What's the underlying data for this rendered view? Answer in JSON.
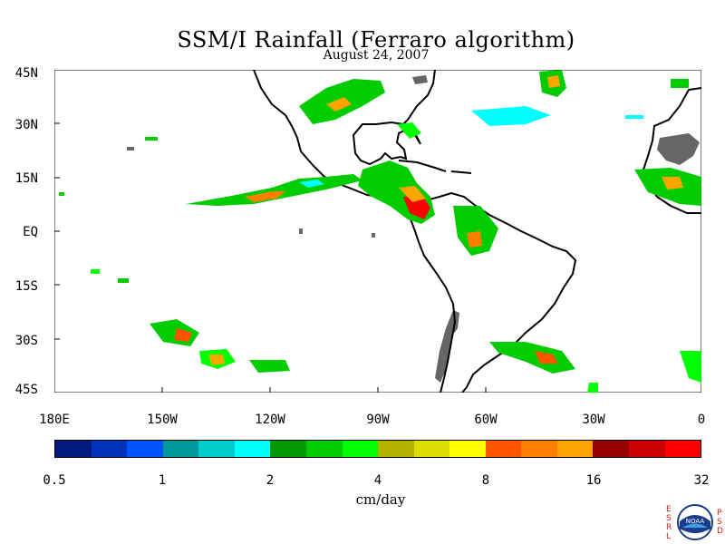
{
  "title": "SSM/I Rainfall (Ferraro algorithm)",
  "date": "August 24, 2007",
  "lat_labels": [
    "45N",
    "30N",
    "15N",
    "EQ",
    "15S",
    "30S",
    "45S"
  ],
  "lon_labels": [
    "180E",
    "150W",
    "120W",
    "90W",
    "60W",
    "30W",
    "0"
  ],
  "colorbar": {
    "tick_labels": [
      "0.5",
      "1",
      "2",
      "4",
      "8",
      "16",
      "32"
    ],
    "units": "cm/day",
    "colors": [
      "#001a80",
      "#0033bb",
      "#0055ff",
      "#009999",
      "#00cccc",
      "#00ffff",
      "#009900",
      "#00cc00",
      "#00ff00",
      "#b3b300",
      "#dddd00",
      "#ffff00",
      "#ff5500",
      "#ff7f00",
      "#ffa500",
      "#990000",
      "#cc0000",
      "#ff0000"
    ]
  },
  "logo": {
    "text": "NOAA",
    "left_letters": [
      "E",
      "S",
      "R",
      "L"
    ],
    "right_letters": [
      "P",
      "S",
      "D"
    ]
  }
}
